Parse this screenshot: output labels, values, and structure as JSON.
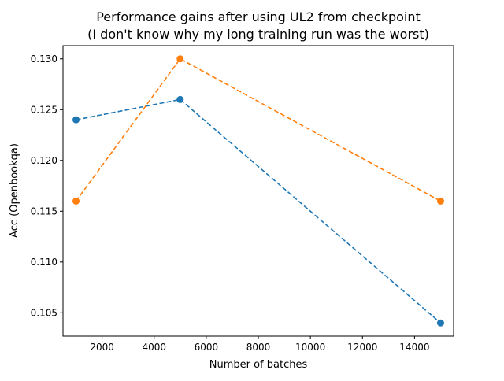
{
  "chart_data": {
    "type": "line",
    "title_line1": "Performance gains after using UL2 from checkpoint",
    "title_line2": "(I don't know why my long training run was the worst)",
    "xlabel": "Number of batches",
    "ylabel": "Acc (Openbookqa)",
    "x": [
      1000,
      5000,
      15000
    ],
    "series": [
      {
        "values": [
          0.124,
          0.126,
          0.104
        ],
        "color": "#1f77b4"
      },
      {
        "values": [
          0.116,
          0.13,
          0.116
        ],
        "color": "#ff7f0e"
      }
    ],
    "xlim": [
      500,
      15500
    ],
    "ylim": [
      0.1027,
      0.1313
    ],
    "xticks": [
      2000,
      4000,
      6000,
      8000,
      10000,
      12000,
      14000
    ],
    "xtick_labels": [
      "2000",
      "4000",
      "6000",
      "8000",
      "10000",
      "12000",
      "14000"
    ],
    "yticks": [
      0.105,
      0.11,
      0.115,
      0.12,
      0.125,
      0.13
    ],
    "ytick_labels": [
      "0.105",
      "0.110",
      "0.115",
      "0.120",
      "0.125",
      "0.130"
    ],
    "line_style": "dashed",
    "markers": "circle",
    "grid": false,
    "legend": "none"
  }
}
